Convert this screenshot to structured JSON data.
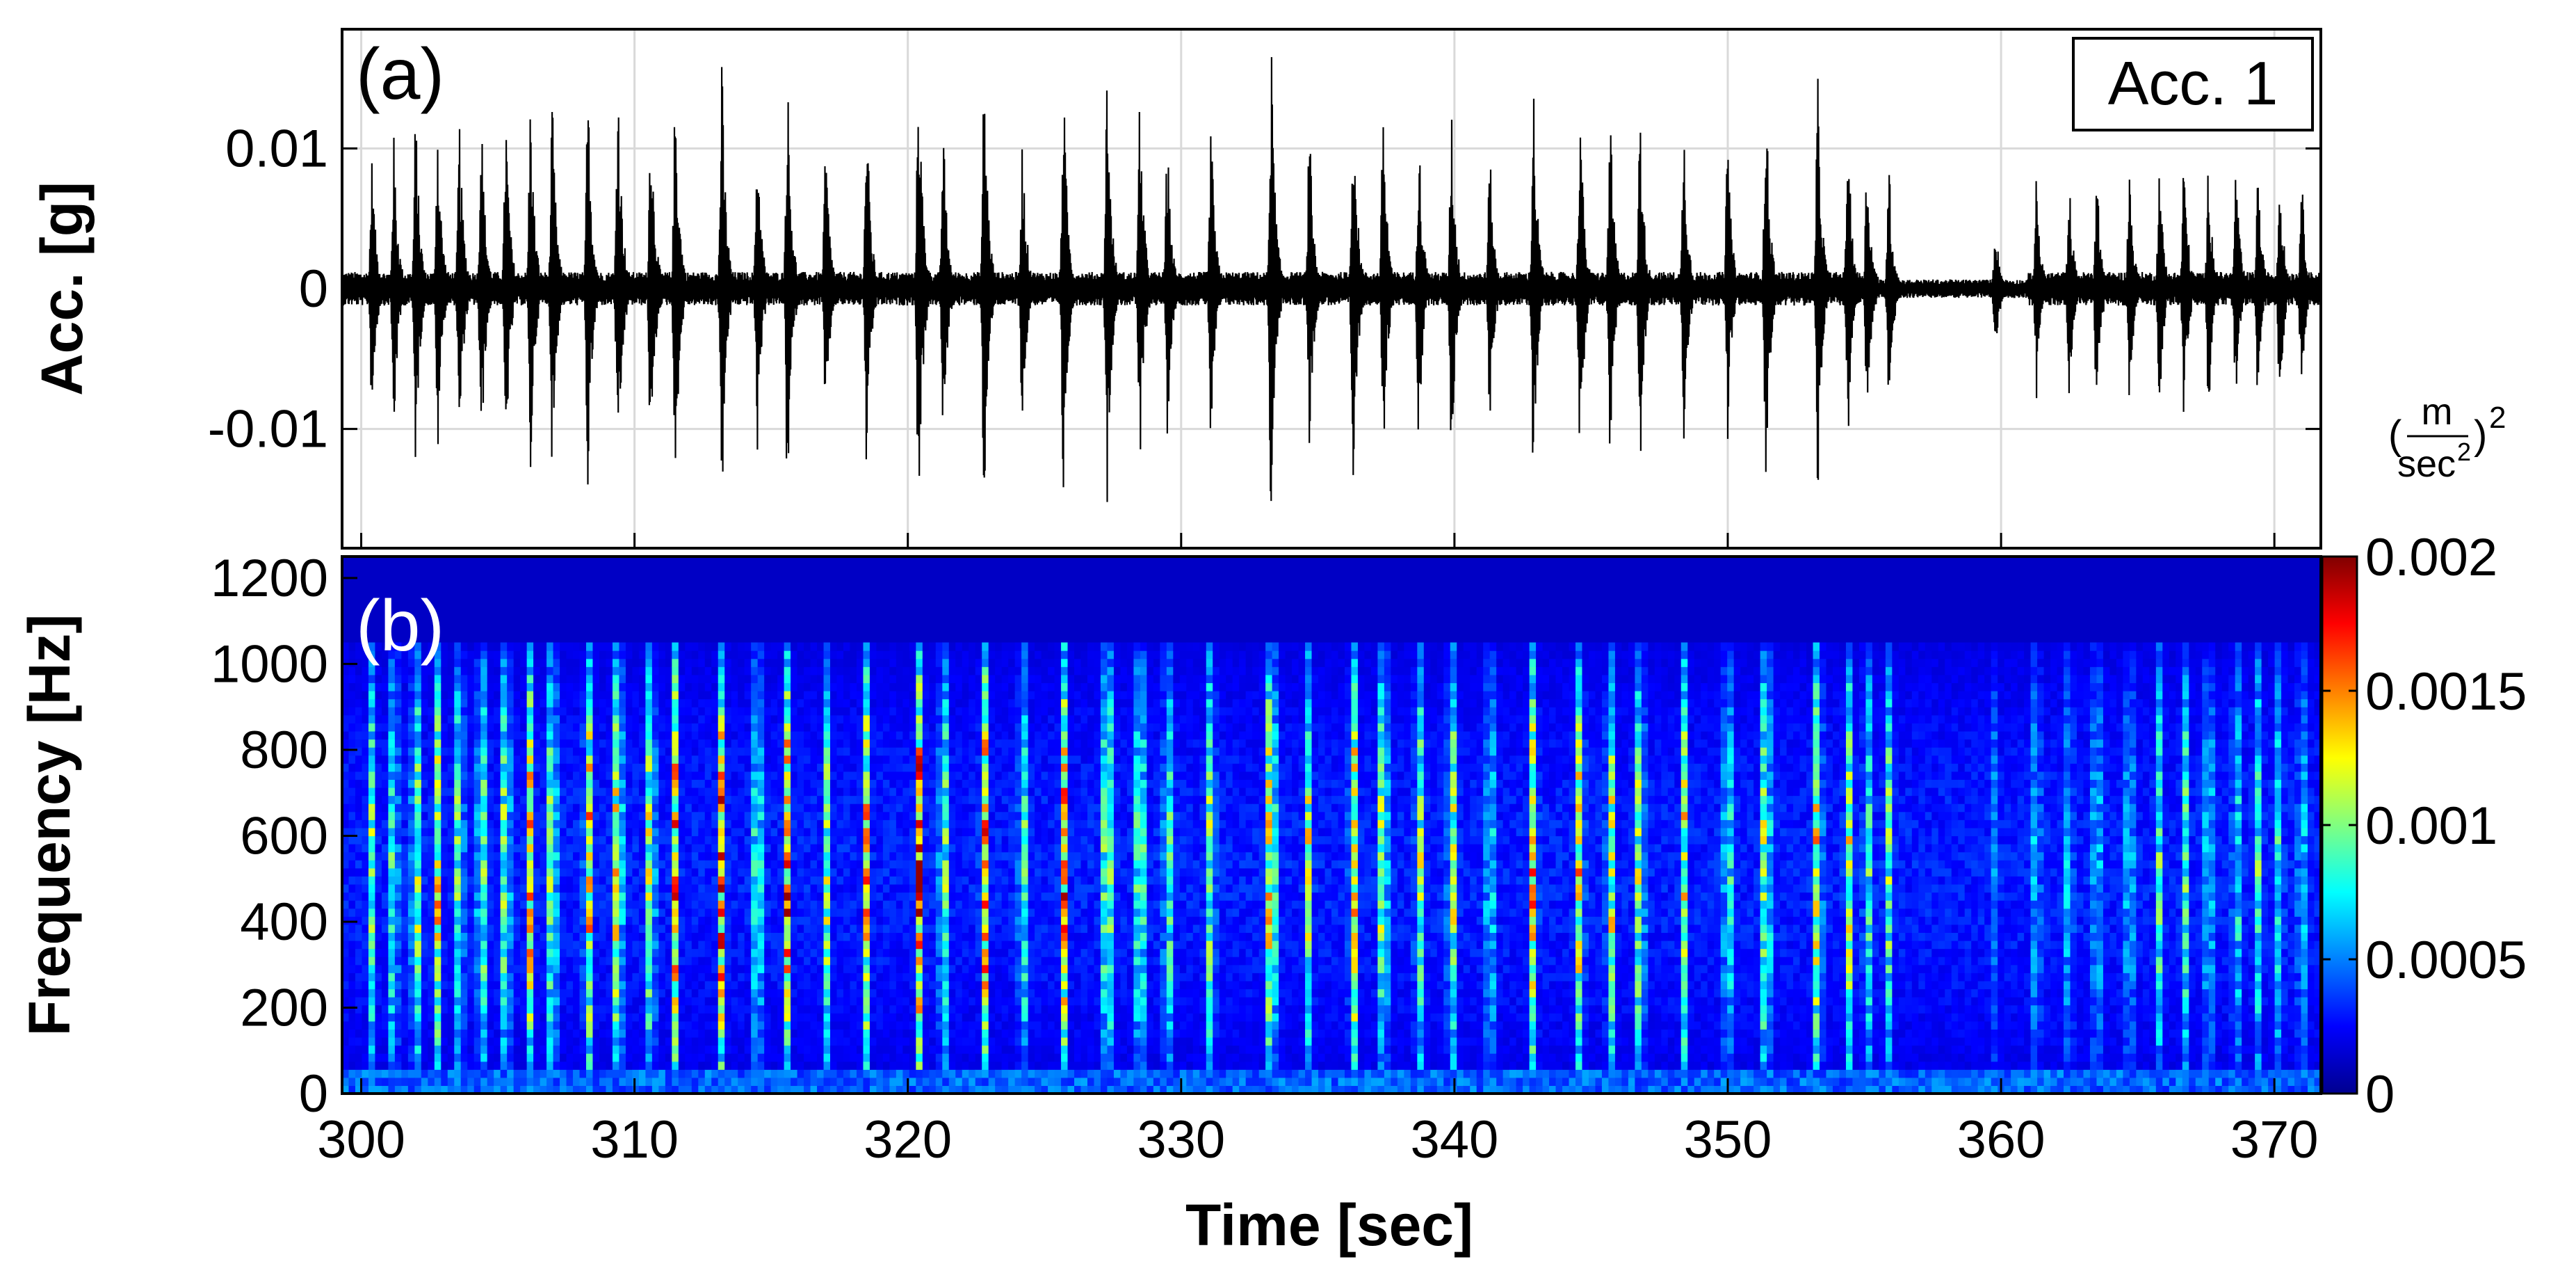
{
  "chart_data": [
    {
      "type": "line",
      "panel_label": "(a)",
      "legend": "Acc. 1",
      "xlabel": "",
      "ylabel": "Acc. [g]",
      "xlim": [
        299.3,
        371.7
      ],
      "ylim": [
        -0.0185,
        0.0185
      ],
      "yticks": [
        {
          "value": 0.01,
          "label": "0.01"
        },
        {
          "value": 0,
          "label": "0"
        },
        {
          "value": -0.01,
          "label": "-0.01"
        }
      ],
      "xticks": [
        300,
        310,
        320,
        330,
        340,
        350,
        360,
        370
      ],
      "grid": true,
      "legend_placement": "top-right",
      "series_color": "#000000",
      "noise_amplitude_g": 0.0012,
      "events": [
        {
          "t": 300.4,
          "amp": 0.0095
        },
        {
          "t": 301.2,
          "amp": 0.011
        },
        {
          "t": 302.0,
          "amp": 0.013
        },
        {
          "t": 302.8,
          "amp": 0.0125
        },
        {
          "t": 303.6,
          "amp": 0.012
        },
        {
          "t": 304.4,
          "amp": 0.013
        },
        {
          "t": 305.3,
          "amp": 0.013
        },
        {
          "t": 306.2,
          "amp": 0.014
        },
        {
          "t": 307.0,
          "amp": 0.0135
        },
        {
          "t": 308.3,
          "amp": 0.015
        },
        {
          "t": 309.4,
          "amp": 0.016
        },
        {
          "t": 310.6,
          "amp": 0.014
        },
        {
          "t": 311.5,
          "amp": 0.015
        },
        {
          "t": 313.2,
          "amp": 0.0165
        },
        {
          "t": 314.5,
          "amp": 0.012
        },
        {
          "t": 315.6,
          "amp": 0.016
        },
        {
          "t": 317.0,
          "amp": 0.011
        },
        {
          "t": 318.5,
          "amp": 0.0135
        },
        {
          "t": 320.4,
          "amp": 0.0175
        },
        {
          "t": 321.3,
          "amp": 0.012
        },
        {
          "t": 322.8,
          "amp": 0.0165
        },
        {
          "t": 324.2,
          "amp": 0.011
        },
        {
          "t": 325.7,
          "amp": 0.0155
        },
        {
          "t": 327.3,
          "amp": 0.016
        },
        {
          "t": 328.5,
          "amp": 0.014
        },
        {
          "t": 329.5,
          "amp": 0.011
        },
        {
          "t": 331.1,
          "amp": 0.012
        },
        {
          "t": 333.3,
          "amp": 0.018
        },
        {
          "t": 334.7,
          "amp": 0.012
        },
        {
          "t": 336.3,
          "amp": 0.0155
        },
        {
          "t": 337.4,
          "amp": 0.014
        },
        {
          "t": 338.7,
          "amp": 0.012
        },
        {
          "t": 339.9,
          "amp": 0.013
        },
        {
          "t": 341.3,
          "amp": 0.01
        },
        {
          "t": 342.9,
          "amp": 0.0145
        },
        {
          "t": 344.6,
          "amp": 0.014
        },
        {
          "t": 345.7,
          "amp": 0.013
        },
        {
          "t": 346.8,
          "amp": 0.0135
        },
        {
          "t": 348.4,
          "amp": 0.012
        },
        {
          "t": 350.0,
          "amp": 0.011
        },
        {
          "t": 351.4,
          "amp": 0.015
        },
        {
          "t": 353.3,
          "amp": 0.015
        },
        {
          "t": 354.4,
          "amp": 0.012
        },
        {
          "t": 355.1,
          "amp": 0.01
        },
        {
          "t": 355.9,
          "amp": 0.0095
        },
        {
          "t": 359.8,
          "amp": 0.005
        },
        {
          "t": 361.3,
          "amp": 0.008
        },
        {
          "t": 362.5,
          "amp": 0.008
        },
        {
          "t": 363.5,
          "amp": 0.009
        },
        {
          "t": 364.7,
          "amp": 0.009
        },
        {
          "t": 365.8,
          "amp": 0.009
        },
        {
          "t": 366.7,
          "amp": 0.01
        },
        {
          "t": 367.6,
          "amp": 0.0095
        },
        {
          "t": 368.6,
          "amp": 0.009
        },
        {
          "t": 369.4,
          "amp": 0.0085
        },
        {
          "t": 370.2,
          "amp": 0.009
        },
        {
          "t": 371.0,
          "amp": 0.0085
        }
      ]
    },
    {
      "type": "heatmap",
      "panel_label": "(b)",
      "xlabel": "Time [sec]",
      "ylabel": "Frequency [Hz]",
      "xlim": [
        299.3,
        371.7
      ],
      "ylim": [
        0,
        1250
      ],
      "xticks": [
        300,
        310,
        320,
        330,
        340,
        350,
        360,
        370
      ],
      "yticks": [
        0,
        200,
        400,
        600,
        800,
        1000,
        1200
      ],
      "colormap": "jet",
      "colormap_colors": [
        "#00008f",
        "#0000ff",
        "#0080ff",
        "#00ffff",
        "#80ff80",
        "#ffff00",
        "#ff8000",
        "#ff0000",
        "#800000"
      ],
      "colorbar": {
        "min": 0,
        "max": 0.002,
        "ticks": [
          {
            "value": 0,
            "label": "0"
          },
          {
            "value": 0.0005,
            "label": "0.0005"
          },
          {
            "value": 0.001,
            "label": "0.001"
          },
          {
            "value": 0.0015,
            "label": "0.0015"
          },
          {
            "value": 0.002,
            "label": "0.002"
          }
        ],
        "unit_numerator": "m",
        "unit_denominator": "sec",
        "unit_exponent": "2"
      },
      "band_freq_range_hz": [
        0,
        1050
      ]
    }
  ]
}
